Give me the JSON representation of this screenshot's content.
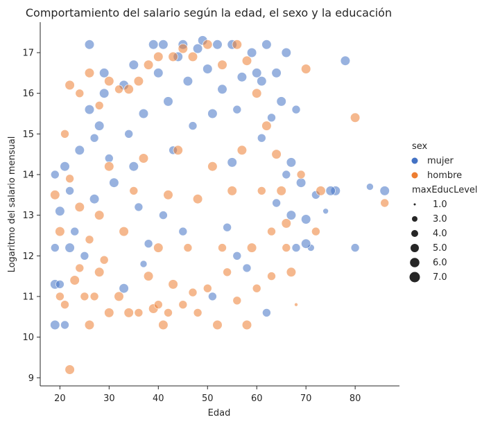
{
  "chart_data": {
    "type": "scatter",
    "title": "Comportamiento del salario según la edad, el sexo y la educación",
    "xlabel": "Edad",
    "ylabel": "Logaritmo del salario mensual",
    "xlim": [
      16,
      89
    ],
    "ylim": [
      8.8,
      17.75
    ],
    "xticks": [
      20,
      30,
      40,
      50,
      60,
      70,
      80
    ],
    "yticks": [
      9,
      10,
      11,
      12,
      13,
      14,
      15,
      16,
      17
    ],
    "grid": false,
    "legend_placement": "right",
    "hue": {
      "title": "sex",
      "entries": [
        {
          "name": "mujer",
          "color": "#4472C4"
        },
        {
          "name": "hombre",
          "color": "#ED7D31"
        }
      ]
    },
    "size": {
      "title": "maxEducLevel",
      "entries": [
        "1.0",
        "3.0",
        "4.0",
        "5.0",
        "6.0",
        "7.0"
      ]
    },
    "marker_alpha": 0.55,
    "series": [
      {
        "name": "mujer",
        "color": "#4472C4",
        "points": [
          {
            "x": 19,
            "y": 10.3,
            "s": 6
          },
          {
            "x": 21,
            "y": 10.3,
            "s": 5
          },
          {
            "x": 19,
            "y": 11.3,
            "s": 6
          },
          {
            "x": 20,
            "y": 11.3,
            "s": 5
          },
          {
            "x": 19,
            "y": 12.2,
            "s": 5
          },
          {
            "x": 22,
            "y": 12.2,
            "s": 6
          },
          {
            "x": 23,
            "y": 12.6,
            "s": 5
          },
          {
            "x": 20,
            "y": 13.1,
            "s": 6
          },
          {
            "x": 22,
            "y": 13.6,
            "s": 5
          },
          {
            "x": 19,
            "y": 14.0,
            "s": 5
          },
          {
            "x": 21,
            "y": 14.2,
            "s": 6
          },
          {
            "x": 24,
            "y": 14.6,
            "s": 6
          },
          {
            "x": 26,
            "y": 17.2,
            "s": 6
          },
          {
            "x": 26,
            "y": 15.6,
            "s": 6
          },
          {
            "x": 27,
            "y": 14.9,
            "s": 5
          },
          {
            "x": 28,
            "y": 15.2,
            "s": 6
          },
          {
            "x": 29,
            "y": 16.0,
            "s": 6
          },
          {
            "x": 29,
            "y": 16.5,
            "s": 6
          },
          {
            "x": 30,
            "y": 14.4,
            "s": 5
          },
          {
            "x": 31,
            "y": 13.8,
            "s": 6
          },
          {
            "x": 33,
            "y": 11.2,
            "s": 6
          },
          {
            "x": 33,
            "y": 16.2,
            "s": 6
          },
          {
            "x": 34,
            "y": 15.0,
            "s": 5
          },
          {
            "x": 35,
            "y": 16.7,
            "s": 6
          },
          {
            "x": 35,
            "y": 14.2,
            "s": 6
          },
          {
            "x": 36,
            "y": 13.2,
            "s": 5
          },
          {
            "x": 37,
            "y": 15.5,
            "s": 6
          },
          {
            "x": 37,
            "y": 11.8,
            "s": 4
          },
          {
            "x": 38,
            "y": 12.3,
            "s": 5
          },
          {
            "x": 39,
            "y": 17.2,
            "s": 6
          },
          {
            "x": 40,
            "y": 16.5,
            "s": 6
          },
          {
            "x": 41,
            "y": 17.2,
            "s": 6
          },
          {
            "x": 42,
            "y": 15.8,
            "s": 6
          },
          {
            "x": 43,
            "y": 14.6,
            "s": 5
          },
          {
            "x": 44,
            "y": 16.9,
            "s": 6
          },
          {
            "x": 45,
            "y": 17.2,
            "s": 6
          },
          {
            "x": 46,
            "y": 16.3,
            "s": 6
          },
          {
            "x": 47,
            "y": 15.2,
            "s": 5
          },
          {
            "x": 48,
            "y": 17.1,
            "s": 6
          },
          {
            "x": 49,
            "y": 17.3,
            "s": 6
          },
          {
            "x": 50,
            "y": 16.6,
            "s": 6
          },
          {
            "x": 51,
            "y": 11.0,
            "s": 5
          },
          {
            "x": 51,
            "y": 15.5,
            "s": 6
          },
          {
            "x": 52,
            "y": 17.2,
            "s": 6
          },
          {
            "x": 53,
            "y": 16.1,
            "s": 6
          },
          {
            "x": 54,
            "y": 12.7,
            "s": 5
          },
          {
            "x": 55,
            "y": 17.2,
            "s": 6
          },
          {
            "x": 55,
            "y": 14.3,
            "s": 6
          },
          {
            "x": 56,
            "y": 15.6,
            "s": 5
          },
          {
            "x": 57,
            "y": 16.4,
            "s": 6
          },
          {
            "x": 58,
            "y": 11.7,
            "s": 5
          },
          {
            "x": 59,
            "y": 17.0,
            "s": 6
          },
          {
            "x": 60,
            "y": 16.5,
            "s": 6
          },
          {
            "x": 61,
            "y": 16.3,
            "s": 6
          },
          {
            "x": 61,
            "y": 14.9,
            "s": 5
          },
          {
            "x": 62,
            "y": 10.6,
            "s": 5
          },
          {
            "x": 62,
            "y": 17.2,
            "s": 6
          },
          {
            "x": 63,
            "y": 15.4,
            "s": 5
          },
          {
            "x": 64,
            "y": 16.5,
            "s": 6
          },
          {
            "x": 65,
            "y": 15.8,
            "s": 6
          },
          {
            "x": 66,
            "y": 17.0,
            "s": 6
          },
          {
            "x": 66,
            "y": 14.0,
            "s": 5
          },
          {
            "x": 67,
            "y": 13.0,
            "s": 6
          },
          {
            "x": 68,
            "y": 15.6,
            "s": 5
          },
          {
            "x": 68,
            "y": 12.2,
            "s": 5
          },
          {
            "x": 69,
            "y": 13.8,
            "s": 6
          },
          {
            "x": 70,
            "y": 12.9,
            "s": 6
          },
          {
            "x": 71,
            "y": 12.2,
            "s": 4
          },
          {
            "x": 72,
            "y": 13.5,
            "s": 5
          },
          {
            "x": 74,
            "y": 13.1,
            "s": 3
          },
          {
            "x": 76,
            "y": 13.6,
            "s": 6
          },
          {
            "x": 78,
            "y": 16.8,
            "s": 6
          },
          {
            "x": 80,
            "y": 12.2,
            "s": 5
          },
          {
            "x": 83,
            "y": 13.7,
            "s": 4
          },
          {
            "x": 86,
            "y": 13.6,
            "s": 6
          },
          {
            "x": 70,
            "y": 12.3,
            "s": 6
          },
          {
            "x": 75,
            "y": 13.6,
            "s": 6
          },
          {
            "x": 67,
            "y": 14.3,
            "s": 6
          },
          {
            "x": 64,
            "y": 13.3,
            "s": 5
          },
          {
            "x": 56,
            "y": 12.0,
            "s": 5
          },
          {
            "x": 45,
            "y": 12.6,
            "s": 5
          },
          {
            "x": 41,
            "y": 13.0,
            "s": 5
          },
          {
            "x": 25,
            "y": 12.0,
            "s": 5
          },
          {
            "x": 27,
            "y": 13.4,
            "s": 6
          }
        ]
      },
      {
        "name": "hombre",
        "color": "#ED7D31",
        "points": [
          {
            "x": 22,
            "y": 9.2,
            "s": 6
          },
          {
            "x": 20,
            "y": 11.0,
            "s": 5
          },
          {
            "x": 21,
            "y": 10.8,
            "s": 5
          },
          {
            "x": 23,
            "y": 11.4,
            "s": 6
          },
          {
            "x": 24,
            "y": 11.7,
            "s": 5
          },
          {
            "x": 25,
            "y": 11.0,
            "s": 5
          },
          {
            "x": 26,
            "y": 10.3,
            "s": 6
          },
          {
            "x": 27,
            "y": 11.0,
            "s": 5
          },
          {
            "x": 28,
            "y": 11.6,
            "s": 6
          },
          {
            "x": 29,
            "y": 11.9,
            "s": 5
          },
          {
            "x": 30,
            "y": 10.6,
            "s": 6
          },
          {
            "x": 32,
            "y": 11.0,
            "s": 6
          },
          {
            "x": 34,
            "y": 10.6,
            "s": 6
          },
          {
            "x": 36,
            "y": 10.6,
            "s": 5
          },
          {
            "x": 38,
            "y": 11.5,
            "s": 6
          },
          {
            "x": 39,
            "y": 10.7,
            "s": 6
          },
          {
            "x": 40,
            "y": 10.8,
            "s": 5
          },
          {
            "x": 41,
            "y": 10.3,
            "s": 6
          },
          {
            "x": 42,
            "y": 10.6,
            "s": 5
          },
          {
            "x": 43,
            "y": 11.3,
            "s": 6
          },
          {
            "x": 45,
            "y": 10.8,
            "s": 5
          },
          {
            "x": 47,
            "y": 11.1,
            "s": 5
          },
          {
            "x": 48,
            "y": 10.6,
            "s": 5
          },
          {
            "x": 50,
            "y": 11.2,
            "s": 5
          },
          {
            "x": 52,
            "y": 10.3,
            "s": 6
          },
          {
            "x": 54,
            "y": 11.6,
            "s": 5
          },
          {
            "x": 56,
            "y": 10.9,
            "s": 5
          },
          {
            "x": 58,
            "y": 10.3,
            "s": 6
          },
          {
            "x": 60,
            "y": 11.2,
            "s": 5
          },
          {
            "x": 63,
            "y": 11.5,
            "s": 5
          },
          {
            "x": 67,
            "y": 11.6,
            "s": 6
          },
          {
            "x": 68,
            "y": 10.8,
            "s": 2
          },
          {
            "x": 70,
            "y": 16.6,
            "s": 6
          },
          {
            "x": 80,
            "y": 15.4,
            "s": 6
          },
          {
            "x": 86,
            "y": 13.3,
            "s": 5
          },
          {
            "x": 73,
            "y": 13.6,
            "s": 6
          },
          {
            "x": 72,
            "y": 12.6,
            "s": 5
          },
          {
            "x": 69,
            "y": 14.0,
            "s": 5
          },
          {
            "x": 66,
            "y": 12.8,
            "s": 6
          },
          {
            "x": 64,
            "y": 14.5,
            "s": 6
          },
          {
            "x": 62,
            "y": 15.2,
            "s": 6
          },
          {
            "x": 60,
            "y": 16.0,
            "s": 6
          },
          {
            "x": 58,
            "y": 16.8,
            "s": 6
          },
          {
            "x": 56,
            "y": 17.2,
            "s": 6
          },
          {
            "x": 53,
            "y": 16.7,
            "s": 6
          },
          {
            "x": 50,
            "y": 17.2,
            "s": 6
          },
          {
            "x": 47,
            "y": 16.9,
            "s": 6
          },
          {
            "x": 45,
            "y": 17.1,
            "s": 6
          },
          {
            "x": 43,
            "y": 16.9,
            "s": 6
          },
          {
            "x": 40,
            "y": 16.9,
            "s": 6
          },
          {
            "x": 38,
            "y": 16.7,
            "s": 6
          },
          {
            "x": 36,
            "y": 16.3,
            "s": 6
          },
          {
            "x": 34,
            "y": 16.1,
            "s": 6
          },
          {
            "x": 32,
            "y": 16.1,
            "s": 5
          },
          {
            "x": 30,
            "y": 16.3,
            "s": 6
          },
          {
            "x": 28,
            "y": 15.7,
            "s": 5
          },
          {
            "x": 26,
            "y": 16.5,
            "s": 6
          },
          {
            "x": 24,
            "y": 16.0,
            "s": 5
          },
          {
            "x": 22,
            "y": 16.2,
            "s": 6
          },
          {
            "x": 21,
            "y": 15.0,
            "s": 5
          },
          {
            "x": 19,
            "y": 13.5,
            "s": 6
          },
          {
            "x": 20,
            "y": 12.6,
            "s": 6
          },
          {
            "x": 22,
            "y": 13.9,
            "s": 5
          },
          {
            "x": 24,
            "y": 13.2,
            "s": 6
          },
          {
            "x": 26,
            "y": 12.4,
            "s": 5
          },
          {
            "x": 28,
            "y": 13.0,
            "s": 6
          },
          {
            "x": 30,
            "y": 14.2,
            "s": 6
          },
          {
            "x": 33,
            "y": 12.6,
            "s": 6
          },
          {
            "x": 35,
            "y": 13.6,
            "s": 5
          },
          {
            "x": 37,
            "y": 14.4,
            "s": 6
          },
          {
            "x": 40,
            "y": 12.2,
            "s": 6
          },
          {
            "x": 42,
            "y": 13.5,
            "s": 6
          },
          {
            "x": 44,
            "y": 14.6,
            "s": 6
          },
          {
            "x": 46,
            "y": 12.2,
            "s": 5
          },
          {
            "x": 48,
            "y": 13.4,
            "s": 6
          },
          {
            "x": 51,
            "y": 14.2,
            "s": 6
          },
          {
            "x": 53,
            "y": 12.2,
            "s": 5
          },
          {
            "x": 55,
            "y": 13.6,
            "s": 6
          },
          {
            "x": 57,
            "y": 14.6,
            "s": 6
          },
          {
            "x": 59,
            "y": 12.2,
            "s": 6
          },
          {
            "x": 61,
            "y": 13.6,
            "s": 5
          },
          {
            "x": 63,
            "y": 12.6,
            "s": 5
          },
          {
            "x": 65,
            "y": 13.6,
            "s": 6
          },
          {
            "x": 66,
            "y": 12.2,
            "s": 5
          }
        ]
      }
    ]
  }
}
